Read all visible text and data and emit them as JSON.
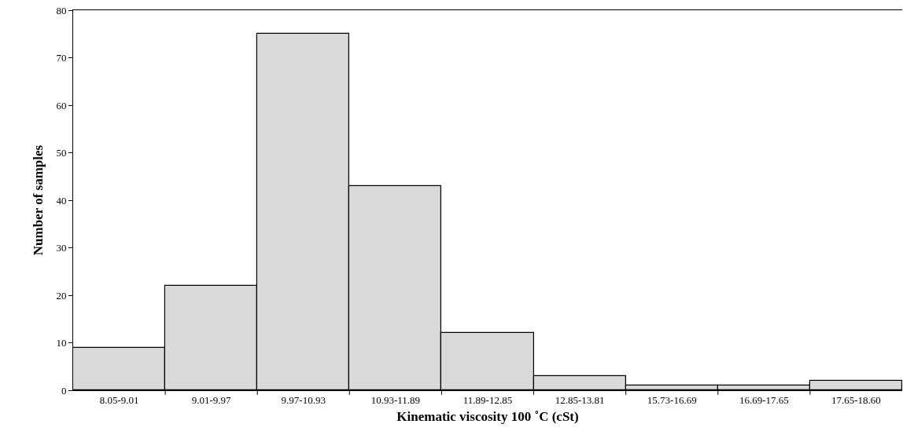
{
  "chart_data": {
    "type": "bar",
    "xlabel": "Kinematic viscosity 100 ˚C (cSt)",
    "ylabel": "Number of samples",
    "categories": [
      "8.05-9.01",
      "9.01-9.97",
      "9.97-10.93",
      "10.93-11.89",
      "11.89-12.85",
      "12.85-13.81",
      "15.73-16.69",
      "16.69-17.65",
      "17.65-18.60"
    ],
    "values": [
      9,
      22,
      75,
      43,
      12,
      3,
      1,
      1,
      2
    ],
    "color": "#d9d9d9",
    "ylim": [
      0,
      80
    ],
    "yticks": [
      0,
      10,
      20,
      30,
      40,
      50,
      60,
      70,
      80
    ],
    "grid": false
  }
}
